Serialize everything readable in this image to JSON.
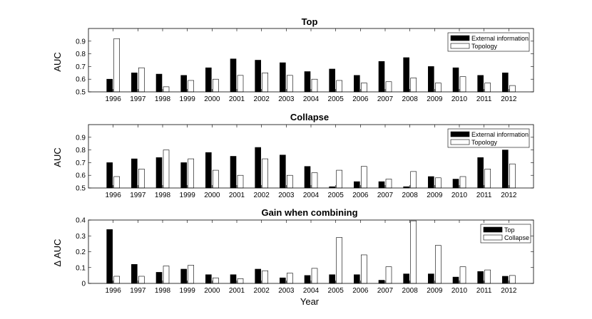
{
  "chart_data": [
    {
      "type": "bar",
      "title": "Top",
      "xlabel": "",
      "ylabel": "AUC",
      "ylim": [
        0.5,
        1.0
      ],
      "yticks": [
        "0.5",
        "0.6",
        "0.7",
        "0.8",
        "0.9"
      ],
      "legend_position": "top-right",
      "categories": [
        "1996",
        "1997",
        "1998",
        "1999",
        "2000",
        "2001",
        "2002",
        "2003",
        "2004",
        "2005",
        "2006",
        "2007",
        "2008",
        "2009",
        "2010",
        "2011",
        "2012"
      ],
      "series": [
        {
          "name": "External information",
          "fill": "#000000",
          "values": [
            0.6,
            0.65,
            0.64,
            0.63,
            0.69,
            0.76,
            0.75,
            0.73,
            0.66,
            0.68,
            0.63,
            0.74,
            0.77,
            0.7,
            0.69,
            0.63,
            0.65
          ]
        },
        {
          "name": "Topology",
          "fill": "#ffffff",
          "values": [
            0.92,
            0.69,
            0.54,
            0.59,
            0.6,
            0.63,
            0.65,
            0.63,
            0.6,
            0.59,
            0.57,
            0.58,
            0.61,
            0.57,
            0.62,
            0.57,
            0.55
          ]
        }
      ]
    },
    {
      "type": "bar",
      "title": "Collapse",
      "xlabel": "",
      "ylabel": "AUC",
      "ylim": [
        0.5,
        1.0
      ],
      "yticks": [
        "0.5",
        "0.6",
        "0.7",
        "0.8",
        "0.9"
      ],
      "legend_position": "top-right",
      "categories": [
        "1996",
        "1997",
        "1998",
        "1999",
        "2000",
        "2001",
        "2002",
        "2003",
        "2004",
        "2005",
        "2006",
        "2007",
        "2008",
        "2009",
        "2010",
        "2011",
        "2012"
      ],
      "series": [
        {
          "name": "External information",
          "fill": "#000000",
          "values": [
            0.7,
            0.73,
            0.74,
            0.7,
            0.78,
            0.75,
            0.82,
            0.76,
            0.67,
            0.51,
            0.55,
            0.55,
            0.51,
            0.59,
            0.57,
            0.74,
            0.8
          ]
        },
        {
          "name": "Topology",
          "fill": "#ffffff",
          "values": [
            0.59,
            0.65,
            0.8,
            0.73,
            0.64,
            0.6,
            0.73,
            0.6,
            0.62,
            0.64,
            0.67,
            0.57,
            0.63,
            0.58,
            0.59,
            0.65,
            0.69
          ]
        }
      ]
    },
    {
      "type": "bar",
      "title": "Gain when combining",
      "xlabel": "Year",
      "ylabel": "Δ AUC",
      "ylim": [
        0,
        0.4
      ],
      "yticks": [
        "0",
        "0.1",
        "0.2",
        "0.3",
        "0.4"
      ],
      "legend_position": "top-right",
      "categories": [
        "1996",
        "1997",
        "1998",
        "1999",
        "2000",
        "2001",
        "2002",
        "2003",
        "2004",
        "2005",
        "2006",
        "2007",
        "2008",
        "2009",
        "2010",
        "2011",
        "2012"
      ],
      "series": [
        {
          "name": "Top",
          "fill": "#000000",
          "values": [
            0.34,
            0.12,
            0.07,
            0.09,
            0.055,
            0.055,
            0.09,
            0.035,
            0.05,
            0.055,
            0.055,
            0.02,
            0.06,
            0.06,
            0.04,
            0.075,
            0.045
          ]
        },
        {
          "name": "Collapse",
          "fill": "#ffffff",
          "values": [
            0.045,
            0.045,
            0.11,
            0.115,
            0.035,
            0.03,
            0.08,
            0.065,
            0.095,
            0.29,
            0.18,
            0.105,
            0.395,
            0.24,
            0.105,
            0.085,
            0.05
          ]
        }
      ]
    }
  ]
}
